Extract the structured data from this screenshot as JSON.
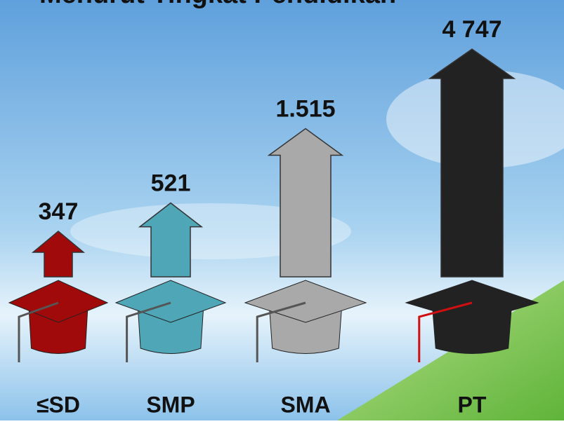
{
  "chart_data": {
    "type": "arrow",
    "title": "Menurut Tingkat Pendidikan",
    "categories": [
      "≤SD",
      "SMP",
      "SMA",
      "PT"
    ],
    "values": [
      347,
      521,
      1515,
      4747
    ],
    "value_labels": [
      "347",
      "521",
      "1.515",
      "4 747"
    ],
    "colors": [
      "#a10a0a",
      "#4fa6b6",
      "#a9a9a9",
      "#222222"
    ]
  }
}
